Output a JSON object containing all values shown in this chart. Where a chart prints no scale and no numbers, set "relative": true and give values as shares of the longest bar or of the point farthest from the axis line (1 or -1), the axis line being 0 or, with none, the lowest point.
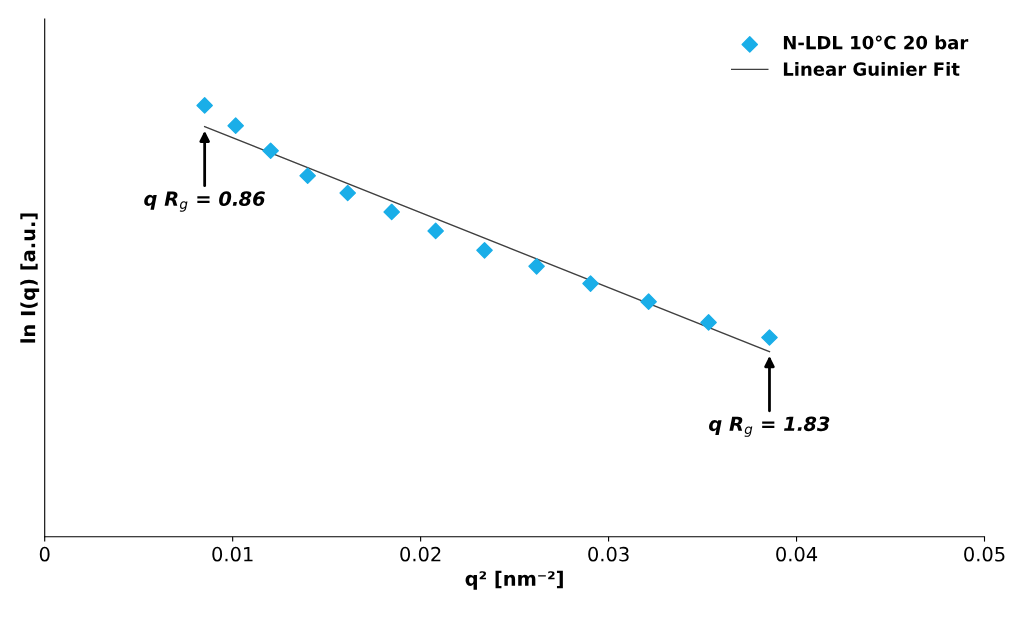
{
  "chart_data": {
    "type": "scatter",
    "relative": true,
    "xlabel": "q² [nm⁻²]",
    "ylabel": "ln I(q) [a.u.]",
    "xlim": [
      0,
      0.05
    ],
    "xticks": [
      0,
      0.01,
      0.02,
      0.03,
      0.04,
      0.05
    ],
    "series": [
      {
        "name": "N-LDL 10°C 20 bar",
        "color": "#1aaee8",
        "marker": "diamond",
        "x": [
          0.00851,
          0.01016,
          0.01202,
          0.01399,
          0.01612,
          0.01846,
          0.0208,
          0.0234,
          0.02617,
          0.02904,
          0.03213,
          0.03532,
          0.03856
        ],
        "values": [
          1,
          0.953,
          0.895,
          0.837,
          0.797,
          0.753,
          0.709,
          0.664,
          0.627,
          0.587,
          0.545,
          0.497,
          0.462
        ]
      },
      {
        "name": "Linear Guinier Fit",
        "type": "line",
        "color": "#404040",
        "marker": "none",
        "line_style": "solid",
        "x": [
          0.00851,
          0.03856
        ],
        "values": [
          0.951,
          0.429
        ]
      }
    ],
    "annotations": [
      {
        "text": "q R$_{g}$ = 0.86",
        "x": 0.00851,
        "y": 0.951
      },
      {
        "text": "q R$_{g}$ = 1.83",
        "x": 0.03856,
        "y": 0.429
      }
    ],
    "legend": "top right",
    "grid": false
  }
}
